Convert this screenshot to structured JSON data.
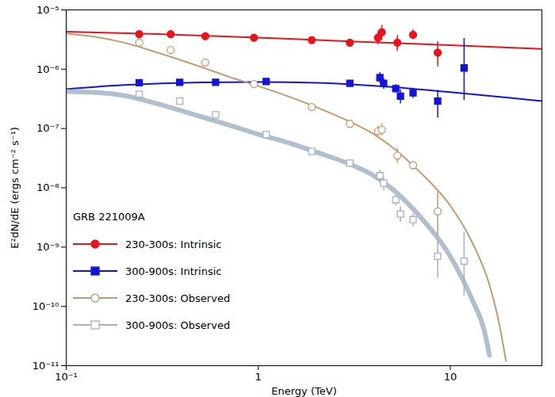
{
  "chart_data": {
    "type": "scatter",
    "log": true,
    "x_label": "Energy (TeV)",
    "y_label": "E²dN/dE (ergs cm⁻² s⁻¹)",
    "annotations": [
      "GRB 221009A"
    ],
    "legend": "lower left",
    "xlim": [
      0.1,
      30
    ],
    "xticks": [
      {
        "value": 0.1,
        "label": "10⁻¹"
      },
      1,
      10
    ],
    "ylim": [
      1e-11,
      1e-05
    ],
    "yticks": [
      {
        "value": 1e-11,
        "label": "10⁻¹¹"
      },
      {
        "value": 1e-10,
        "label": "10⁻¹⁰"
      },
      {
        "value": 1e-09,
        "label": "10⁻⁹"
      },
      {
        "value": 1e-08,
        "label": "10⁻⁸"
      },
      {
        "value": 1e-07,
        "label": "10⁻⁷"
      },
      {
        "value": 1e-06,
        "label": "10⁻⁶"
      },
      {
        "value": 1e-05,
        "label": "10⁻⁵"
      }
    ],
    "series": [
      {
        "name": "230-300s: Intrinsic",
        "color": "#e8141c",
        "marker": "filled_circle",
        "x": [
          0.24,
          0.35,
          0.53,
          0.95,
          1.9,
          3.0,
          4.2,
          4.4,
          5.3,
          6.4,
          8.6
        ],
        "values": [
          3.9e-06,
          3.9e-06,
          3.6e-06,
          3.4e-06,
          3.1e-06,
          2.8e-06,
          3.4e-06,
          4.2e-06,
          2.8e-06,
          3.8e-06,
          1.9e-06
        ],
        "ylow": [
          null,
          null,
          null,
          null,
          null,
          null,
          2.6e-06,
          3.1e-06,
          2e-06,
          3.2e-06,
          1.1e-06
        ],
        "yhigh": [
          null,
          null,
          null,
          null,
          null,
          null,
          4.3e-06,
          5.5e-06,
          3.7e-06,
          4.6e-06,
          2.9e-06
        ],
        "fit": {
          "line_style": "solid",
          "x": [
            0.1,
            0.3,
            1,
            3,
            10,
            30
          ],
          "values": [
            4.3e-06,
            3.9e-06,
            3.4e-06,
            2.95e-06,
            2.55e-06,
            2.2e-06
          ]
        }
      },
      {
        "name": "300-900s: Intrinsic",
        "color": "#1414d8",
        "marker": "filled_square",
        "x": [
          0.24,
          0.39,
          0.6,
          1.1,
          3.0,
          4.3,
          4.5,
          5.2,
          5.5,
          6.4,
          8.6,
          11.8
        ],
        "values": [
          5.9e-07,
          6e-07,
          6e-07,
          6.2e-07,
          5.8e-07,
          7.2e-07,
          5.8e-07,
          4.7e-07,
          3.5e-07,
          4e-07,
          2.9e-07,
          1.05e-06
        ],
        "ylow": [
          null,
          null,
          null,
          null,
          null,
          5.8e-07,
          4.6e-07,
          4e-07,
          2.6e-07,
          3.2e-07,
          1.5e-07,
          3e-07
        ],
        "yhigh": [
          null,
          null,
          null,
          null,
          null,
          8.8e-07,
          7e-07,
          5.5e-07,
          4.5e-07,
          4.8e-07,
          4.4e-07,
          3.3e-06
        ],
        "fit": {
          "line_style": "solid",
          "x": [
            0.1,
            0.2,
            0.5,
            1,
            2,
            5,
            10,
            20,
            30
          ],
          "values": [
            4.6e-07,
            5.4e-07,
            6e-07,
            6.1e-07,
            5.9e-07,
            5e-07,
            4.1e-07,
            3.3e-07,
            2.9e-07
          ]
        }
      },
      {
        "name": "230-300s: Observed",
        "color": "#c49a72",
        "marker": "open_circle",
        "x": [
          0.24,
          0.35,
          0.53,
          0.95,
          1.9,
          3.0,
          4.2,
          4.4,
          5.3,
          6.4,
          8.6
        ],
        "values": [
          2.8e-06,
          2.1e-06,
          1.3e-06,
          5.6e-07,
          2.3e-07,
          1.2e-07,
          9e-08,
          9.5e-08,
          3.5e-08,
          2.4e-08,
          4e-09
        ],
        "ylow": [
          null,
          null,
          null,
          null,
          null,
          null,
          7.5e-08,
          7.5e-08,
          2.6e-08,
          2e-08,
          1.5e-09
        ],
        "yhigh": [
          null,
          null,
          null,
          null,
          null,
          null,
          1.1e-07,
          1.2e-07,
          4.6e-08,
          2.8e-08,
          9e-09
        ],
        "fit": {
          "line_style": "solid",
          "x": [
            0.1,
            0.15,
            0.2,
            0.3,
            0.5,
            0.7,
            1,
            1.5,
            2,
            3,
            4,
            5,
            7,
            10,
            13,
            16,
            18,
            19.5
          ],
          "values": [
            4e-06,
            3.4e-06,
            2.8e-06,
            1.9e-06,
            1.1e-06,
            7.5e-07,
            5.2e-07,
            3.3e-07,
            2.3e-07,
            1.3e-07,
            8e-08,
            4.8e-08,
            1.8e-08,
            5e-09,
            1.2e-09,
            2.3e-10,
            5e-11,
            1.2e-11
          ]
        }
      },
      {
        "name": "300-900s: Observed",
        "color": "#a3b3c3",
        "marker": "open_square",
        "x": [
          0.24,
          0.39,
          0.6,
          1.1,
          1.9,
          3.0,
          4.3,
          4.5,
          5.2,
          5.5,
          6.4,
          8.6,
          11.8
        ],
        "values": [
          3.8e-07,
          2.9e-07,
          1.7e-07,
          7.9e-08,
          4.1e-08,
          2.6e-08,
          1.6e-08,
          1.2e-08,
          6.3e-09,
          3.6e-09,
          2.9e-09,
          7e-10,
          5.8e-10
        ],
        "ylow": [
          null,
          null,
          null,
          null,
          null,
          null,
          1.2e-08,
          9e-09,
          5e-09,
          2.6e-09,
          2.2e-09,
          3e-10,
          1.5e-10
        ],
        "yhigh": [
          null,
          null,
          null,
          null,
          null,
          null,
          2e-08,
          1.5e-08,
          7.5e-09,
          4.8e-09,
          3.6e-09,
          1.3e-09,
          1.8e-09
        ],
        "fit": {
          "line_style": "band",
          "x": [
            0.1,
            0.15,
            0.2,
            0.3,
            0.5,
            0.7,
            1,
            1.5,
            2,
            3,
            4,
            5,
            7,
            10,
            13,
            15,
            16
          ],
          "values": [
            4.2e-07,
            4e-07,
            3.6e-07,
            2.6e-07,
            1.6e-07,
            1.15e-07,
            8e-08,
            5.5e-08,
            4e-08,
            2.5e-08,
            1.6e-08,
            9.5e-09,
            3.2e-09,
            7e-10,
            1.3e-10,
            4e-11,
            1.5e-11
          ]
        }
      }
    ]
  }
}
